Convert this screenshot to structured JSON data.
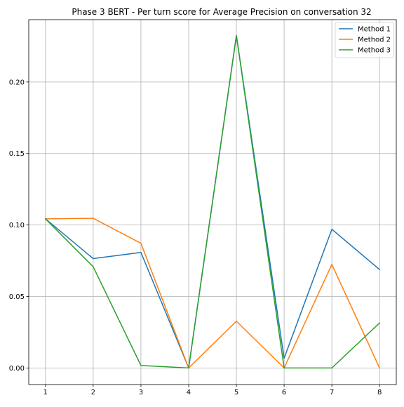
{
  "chart_data": {
    "type": "line",
    "title": "Phase 3 BERT - Per turn score for Average Precision on conversation 32",
    "xlabel": "",
    "ylabel": "",
    "x": [
      1,
      2,
      3,
      4,
      5,
      6,
      7,
      8
    ],
    "xlim": [
      0.65,
      8.35
    ],
    "ylim": [
      -0.0116,
      0.2436
    ],
    "xticks": [
      1,
      2,
      3,
      4,
      5,
      6,
      7,
      8
    ],
    "yticks": [
      0.0,
      0.05,
      0.1,
      0.15,
      0.2
    ],
    "ytick_labels": [
      "0.00",
      "0.05",
      "0.10",
      "0.15",
      "0.20"
    ],
    "grid": true,
    "legend_position": "top-right",
    "series": [
      {
        "name": "Method 1",
        "color": "#1f77b4",
        "values": [
          0.1043,
          0.0765,
          0.0808,
          0.0,
          0.2325,
          0.0068,
          0.097,
          0.0688
        ]
      },
      {
        "name": "Method 2",
        "color": "#ff7f0e",
        "values": [
          0.1043,
          0.1047,
          0.0872,
          0.0,
          0.0327,
          0.0,
          0.0724,
          0.0
        ]
      },
      {
        "name": "Method 3",
        "color": "#2ca02c",
        "values": [
          0.1043,
          0.0708,
          0.0017,
          0.0,
          0.2325,
          0.0,
          0.0,
          0.0315
        ]
      }
    ]
  }
}
